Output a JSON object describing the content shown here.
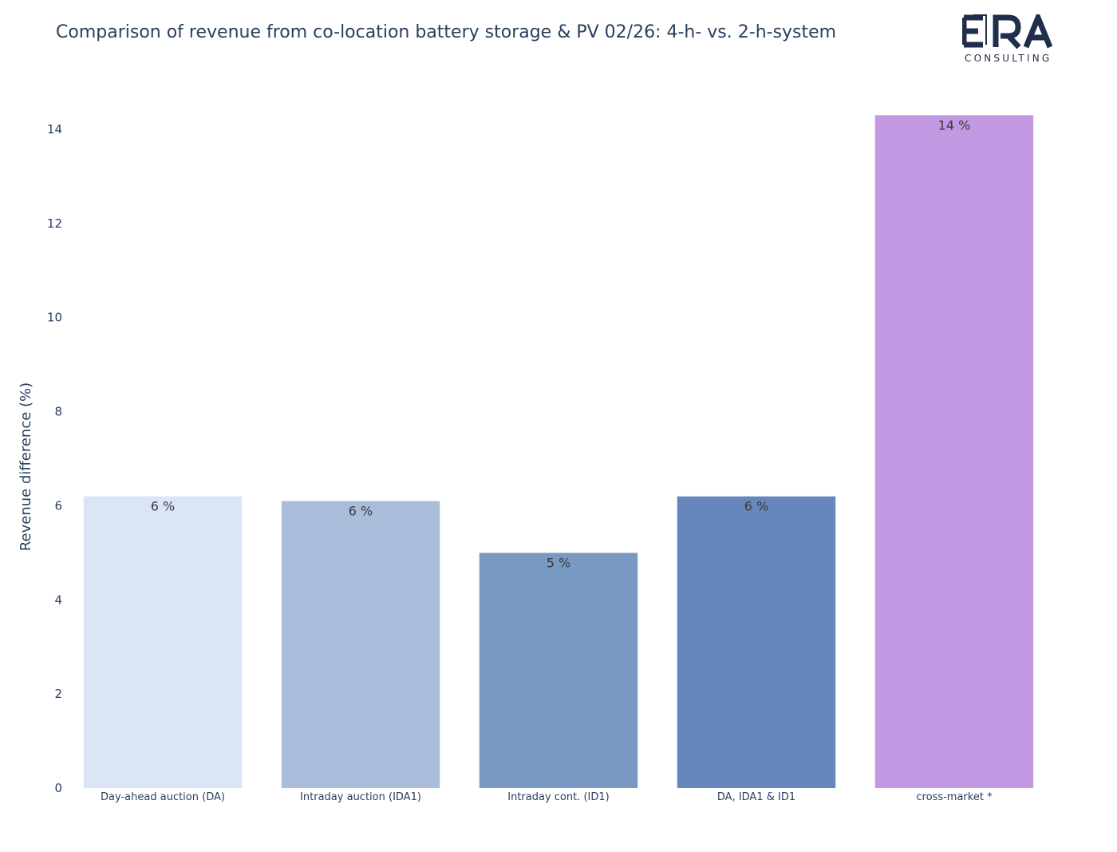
{
  "header": {
    "title": "Comparison of revenue from co-location battery storage & PV 02/26: 4-h- vs. 2-h-system"
  },
  "logo": {
    "mark": "ERA",
    "subtitle": "CONSULTING",
    "color": "#1f2e4a"
  },
  "chart_data": {
    "type": "bar",
    "title": "Comparison of revenue from co-location battery storage & PV 02/26: 4-h- vs. 2-h-system",
    "xlabel": "",
    "ylabel": "Revenue difference (%)",
    "ylim": [
      0,
      14.5
    ],
    "yticks": [
      0,
      2,
      4,
      6,
      8,
      10,
      12,
      14
    ],
    "grid": false,
    "categories": [
      "Day-ahead auction (DA)",
      "Intraday auction (IDA1)",
      "Intraday cont. (ID1)",
      "DA, IDA1 & ID1",
      "cross-market *"
    ],
    "values": [
      6.2,
      6.1,
      5.0,
      6.2,
      14.3
    ],
    "data_labels": [
      "6 %",
      "6 %",
      "5 %",
      "6 %",
      "14 %"
    ],
    "colors": [
      "#dae6f6",
      "#a9bcd9",
      "#7899c1",
      "#6587bc",
      "#c299e2"
    ]
  }
}
